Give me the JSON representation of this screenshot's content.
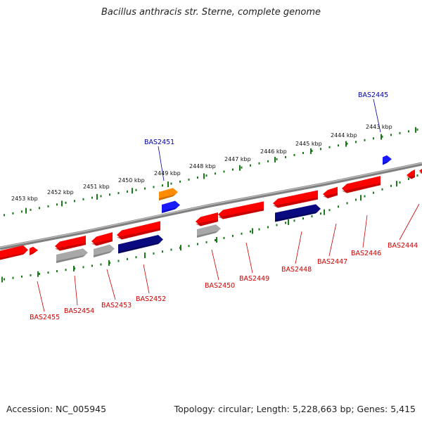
{
  "title": "Bacillus anthracis str. Sterne, complete genome",
  "footer": {
    "accession": "Accession: NC_005945",
    "summary": "Topology: circular; Length: 5,228,663 bp; Genes: 5,415"
  },
  "colors": {
    "backbone": "#808080",
    "tick": "#1a7a1a",
    "gene_red": "#ff0000",
    "gene_navy": "#0a0a80",
    "gene_grey": "#a8a8a8",
    "gene_blue": "#1a1aff",
    "gene_orange": "#ff8c00",
    "label_red": "#cc0000",
    "label_blue": "#0000aa"
  },
  "kbp_labels": [
    "2453 kbp",
    "2452 kbp",
    "2451 kbp",
    "2450 kbp",
    "2449 kbp",
    "2448 kbp",
    "2447 kbp",
    "2446 kbp",
    "2445 kbp",
    "2444 kbp",
    "2443 kbp"
  ],
  "gene_labels_outer": [
    "BAS2451",
    "BAS2445"
  ],
  "gene_labels_inner": [
    "BAS2455",
    "BAS2454",
    "BAS2453",
    "BAS2452",
    "BAS2450",
    "BAS2449",
    "BAS2448",
    "BAS2447",
    "BAS2446",
    "BAS2444"
  ]
}
